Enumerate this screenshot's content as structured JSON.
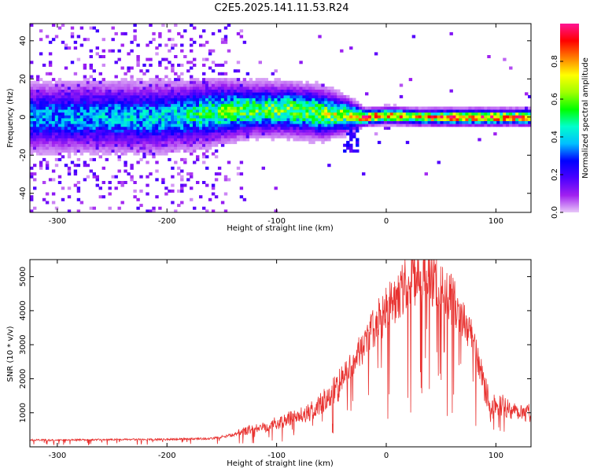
{
  "title": "C2E5.2025.141.11.53.R24",
  "chart_data": [
    {
      "type": "heatmap",
      "title": "C2E5.2025.141.11.53.R24",
      "xlabel": "Height of straight line (km)",
      "ylabel": "Frequency (Hz)",
      "xlim": [
        -325,
        132
      ],
      "ylim": [
        -50,
        49
      ],
      "x_ticks": [
        -300,
        -200,
        -100,
        0,
        100
      ],
      "y_ticks": [
        -40,
        -20,
        0,
        20,
        40
      ],
      "colorbar": {
        "label": "Normalized spectral amplitude",
        "range": [
          0.0,
          1.0
        ],
        "ticks": [
          0.0,
          0.2,
          0.4,
          0.6,
          0.8
        ],
        "colormap": [
          "#e8c8f8",
          "#a020f0",
          "#4b00ff",
          "#0000ff",
          "#00bfff",
          "#00ffcc",
          "#00ff00",
          "#a0ff00",
          "#ffff00",
          "#ff8000",
          "#ff0000",
          "#ff1493"
        ]
      },
      "ridge": [
        {
          "x": -325,
          "freq": 0,
          "width": 8,
          "amp": 0.35
        },
        {
          "x": -260,
          "freq": 0,
          "width": 8,
          "amp": 0.38
        },
        {
          "x": -200,
          "freq": 0,
          "width": 8,
          "amp": 0.4
        },
        {
          "x": -150,
          "freq": 3,
          "width": 7,
          "amp": 0.55
        },
        {
          "x": -120,
          "freq": 4,
          "width": 6,
          "amp": 0.55
        },
        {
          "x": -90,
          "freq": 4,
          "width": 6,
          "amp": 0.58
        },
        {
          "x": -60,
          "freq": 2,
          "width": 6,
          "amp": 0.6
        },
        {
          "x": -35,
          "freq": 1,
          "width": 4,
          "amp": 0.62
        },
        {
          "x": -20,
          "freq": 0,
          "width": 2,
          "amp": 0.92
        },
        {
          "x": 0,
          "freq": 1,
          "width": 2,
          "amp": 0.8
        },
        {
          "x": 30,
          "freq": 0,
          "width": 2,
          "amp": 0.72
        },
        {
          "x": 60,
          "freq": 0,
          "width": 2,
          "amp": 0.85
        },
        {
          "x": 90,
          "freq": 0,
          "width": 2,
          "amp": 0.88
        },
        {
          "x": 132,
          "freq": 0,
          "width": 2,
          "amp": 0.78
        }
      ]
    },
    {
      "type": "line",
      "xlabel": "Height of straight line (km)",
      "ylabel": "SNR (10 * v/v)",
      "xlim": [
        -325,
        132
      ],
      "ylim": [
        0,
        5500
      ],
      "x_ticks": [
        -300,
        -200,
        -100,
        0,
        100
      ],
      "y_ticks": [
        1000,
        2000,
        3000,
        4000,
        5000
      ],
      "color": "#e8312f",
      "series": [
        {
          "x": [
            -325,
            -300,
            -250,
            -200,
            -160,
            -140,
            -125,
            -110,
            -90,
            -70,
            -50,
            -30,
            -20,
            -10,
            0,
            10,
            20,
            30,
            40,
            50,
            60,
            70,
            80,
            90,
            95,
            100,
            110,
            120,
            132
          ],
          "values": [
            200,
            200,
            210,
            220,
            240,
            350,
            500,
            600,
            800,
            1000,
            1500,
            2500,
            3000,
            3600,
            4000,
            4500,
            4800,
            5000,
            5000,
            4700,
            4300,
            3800,
            3000,
            1800,
            1200,
            1300,
            1150,
            1050,
            1000
          ]
        }
      ]
    }
  ]
}
